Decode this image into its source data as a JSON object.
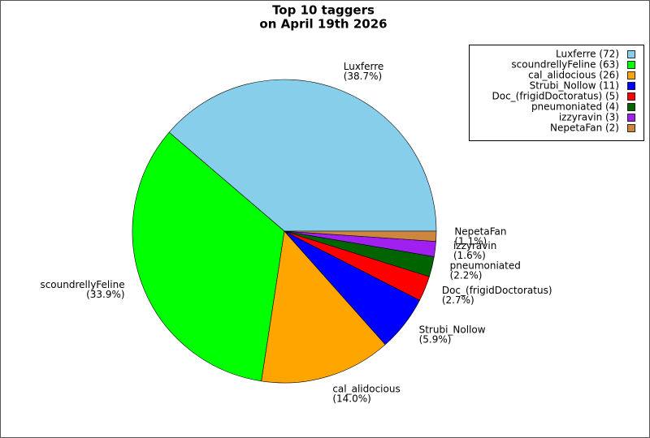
{
  "chart_data": {
    "type": "pie",
    "title": [
      "Top 10 taggers",
      "on April 19th 2026"
    ],
    "categories": [
      "Luxferre",
      "scoundrellyFeline",
      "cal_alidocious",
      "Strubi_Nollow",
      "Doc_(frigidDoctoratus)",
      "pneumoniated",
      "izzyravin",
      "NepetaFan"
    ],
    "values": [
      72,
      63,
      26,
      11,
      5,
      4,
      3,
      2
    ],
    "percent_labels": [
      "(38.7%)",
      "(33.9%)",
      "(14.0%)",
      "(5.9%)",
      "(2.7%)",
      "(2.2%)",
      "(1.6%)",
      "(1.1%)"
    ],
    "legend_labels": [
      "Luxferre (72)",
      "scoundrellyFeline (63)",
      "cal_alidocious (26)",
      "Strubi_Nollow (11)",
      "Doc_(frigidDoctoratus) (5)",
      "pneumoniated (4)",
      "izzyravin (3)",
      "NepetaFan (2)"
    ],
    "colors": [
      "#87ceeb",
      "#00ff00",
      "#ffa500",
      "#0000ff",
      "#ff0000",
      "#006400",
      "#a020f0",
      "#cd853f"
    ],
    "legend": "upper right"
  }
}
